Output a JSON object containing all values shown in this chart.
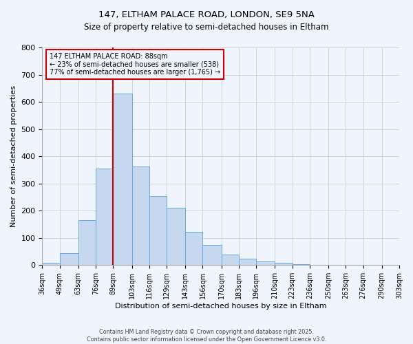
{
  "title": "147, ELTHAM PALACE ROAD, LONDON, SE9 5NA",
  "subtitle": "Size of property relative to semi-detached houses in Eltham",
  "xlabel": "Distribution of semi-detached houses by size in Eltham",
  "ylabel": "Number of semi-detached properties",
  "bins": [
    36,
    49,
    63,
    76,
    89,
    103,
    116,
    129,
    143,
    156,
    170,
    183,
    196,
    210,
    223,
    236,
    250,
    263,
    276,
    290,
    303
  ],
  "counts": [
    8,
    45,
    165,
    355,
    630,
    363,
    255,
    210,
    123,
    75,
    38,
    24,
    14,
    8,
    3,
    1,
    1,
    0,
    0,
    1
  ],
  "bar_color": "#c5d8f0",
  "bar_edge_color": "#6aaad4",
  "marker_value": 89,
  "marker_color": "#cc0000",
  "annotation_title": "147 ELTHAM PALACE ROAD: 88sqm",
  "annotation_line1": "← 23% of semi-detached houses are smaller (538)",
  "annotation_line2": "77% of semi-detached houses are larger (1,765) →",
  "annotation_box_color": "#cc0000",
  "ylim": [
    0,
    800
  ],
  "yticks": [
    0,
    100,
    200,
    300,
    400,
    500,
    600,
    700,
    800
  ],
  "tick_labels": [
    "36sqm",
    "49sqm",
    "63sqm",
    "76sqm",
    "89sqm",
    "103sqm",
    "116sqm",
    "129sqm",
    "143sqm",
    "156sqm",
    "170sqm",
    "183sqm",
    "196sqm",
    "210sqm",
    "223sqm",
    "236sqm",
    "250sqm",
    "263sqm",
    "276sqm",
    "290sqm",
    "303sqm"
  ],
  "footer1": "Contains HM Land Registry data © Crown copyright and database right 2025.",
  "footer2": "Contains public sector information licensed under the Open Government Licence v3.0.",
  "bg_color": "#f0f4fc",
  "grid_color": "#c8d4e8",
  "annotation_font_size": 7.0,
  "title_font_size": 9.5,
  "subtitle_font_size": 8.5,
  "axis_label_font_size": 8.0,
  "tick_font_size": 7.0,
  "footer_font_size": 5.8
}
